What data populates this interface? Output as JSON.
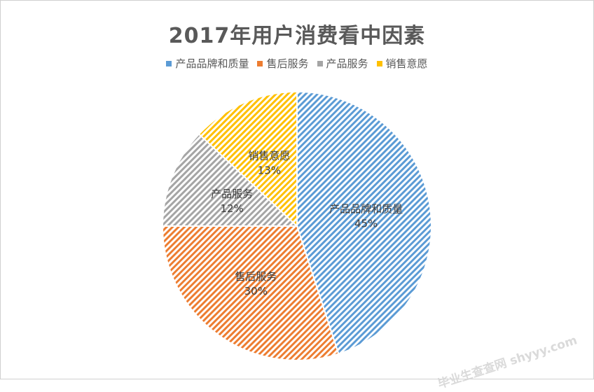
{
  "chart_data": {
    "type": "pie",
    "title": "2017年用户消费看中因素",
    "categories": [
      "产品品牌和质量",
      "售后服务",
      "产品服务",
      "销售意愿"
    ],
    "values": [
      45,
      30,
      12,
      13
    ],
    "labels": [
      "45%",
      "30%",
      "12%",
      "13%"
    ],
    "colors": [
      "#5b9bd5",
      "#ed7d31",
      "#a5a5a5",
      "#ffc000"
    ],
    "legend_position": "top"
  },
  "watermark": "毕业生查查网 shyyy.com"
}
